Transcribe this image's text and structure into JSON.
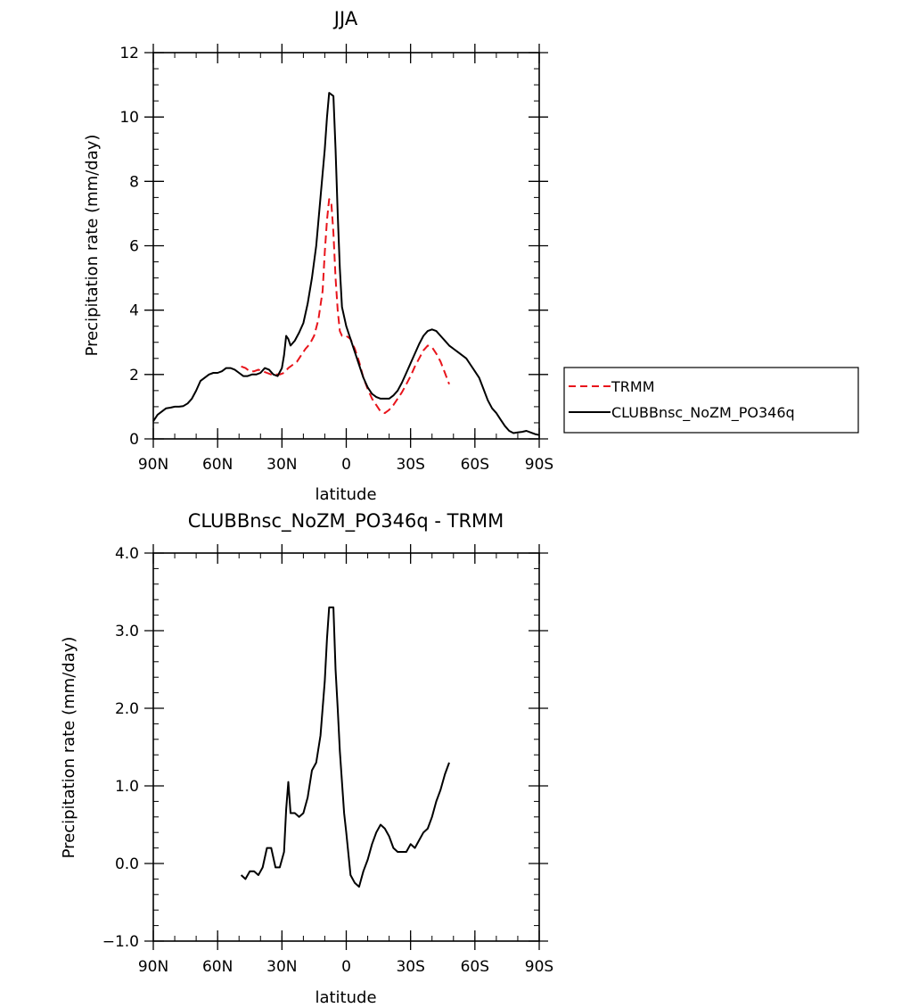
{
  "chart_data": [
    {
      "type": "line",
      "title": "JJA",
      "xlabel": "latitude",
      "ylabel": "Precipitation rate (mm/day)",
      "xlim": [
        -90,
        90
      ],
      "ylim": [
        0,
        12
      ],
      "x_ticks": [
        {
          "value": -90,
          "label": "90N"
        },
        {
          "value": -60,
          "label": "60N"
        },
        {
          "value": -30,
          "label": "30N"
        },
        {
          "value": 0,
          "label": "0"
        },
        {
          "value": 30,
          "label": "30S"
        },
        {
          "value": 60,
          "label": "60S"
        },
        {
          "value": 90,
          "label": "90S"
        }
      ],
      "y_ticks": [
        {
          "value": 0,
          "label": "0"
        },
        {
          "value": 2,
          "label": "2"
        },
        {
          "value": 4,
          "label": "4"
        },
        {
          "value": 6,
          "label": "6"
        },
        {
          "value": 8,
          "label": "8"
        },
        {
          "value": 10,
          "label": "10"
        },
        {
          "value": 12,
          "label": "12"
        }
      ],
      "legend_position": "right, outside plot",
      "series": [
        {
          "name": "TRMM",
          "color": "#e8141b",
          "dash": "dashed",
          "points": [
            [
              -49,
              2.25
            ],
            [
              -47,
              2.2
            ],
            [
              -45,
              2.1
            ],
            [
              -43,
              2.1
            ],
            [
              -41,
              2.15
            ],
            [
              -39,
              2.1
            ],
            [
              -37,
              2.05
            ],
            [
              -35,
              2.0
            ],
            [
              -33,
              2.0
            ],
            [
              -31,
              2.0
            ],
            [
              -29,
              2.05
            ],
            [
              -27,
              2.2
            ],
            [
              -25,
              2.3
            ],
            [
              -23,
              2.4
            ],
            [
              -21,
              2.6
            ],
            [
              -19,
              2.8
            ],
            [
              -17,
              2.95
            ],
            [
              -15,
              3.2
            ],
            [
              -13,
              3.7
            ],
            [
              -11,
              4.6
            ],
            [
              -10,
              5.8
            ],
            [
              -9,
              6.8
            ],
            [
              -8,
              7.45
            ],
            [
              -7,
              7.35
            ],
            [
              -6,
              6.4
            ],
            [
              -5,
              5.0
            ],
            [
              -4,
              4.0
            ],
            [
              -3,
              3.35
            ],
            [
              -2,
              3.2
            ],
            [
              0,
              3.2
            ],
            [
              2,
              3.1
            ],
            [
              4,
              2.8
            ],
            [
              6,
              2.4
            ],
            [
              8,
              1.9
            ],
            [
              10,
              1.55
            ],
            [
              12,
              1.25
            ],
            [
              14,
              1.05
            ],
            [
              16,
              0.85
            ],
            [
              18,
              0.8
            ],
            [
              20,
              0.9
            ],
            [
              22,
              1.05
            ],
            [
              24,
              1.25
            ],
            [
              26,
              1.45
            ],
            [
              28,
              1.7
            ],
            [
              30,
              1.95
            ],
            [
              32,
              2.25
            ],
            [
              34,
              2.5
            ],
            [
              36,
              2.75
            ],
            [
              38,
              2.9
            ],
            [
              40,
              2.85
            ],
            [
              42,
              2.65
            ],
            [
              44,
              2.4
            ],
            [
              46,
              2.05
            ],
            [
              48,
              1.7
            ]
          ]
        },
        {
          "name": "CLUBBnsc_NoZM_PO346q",
          "color": "#000000",
          "dash": "solid",
          "points": [
            [
              -90,
              0.55
            ],
            [
              -88,
              0.75
            ],
            [
              -86,
              0.85
            ],
            [
              -84,
              0.95
            ],
            [
              -82,
              0.97
            ],
            [
              -80,
              1.0
            ],
            [
              -78,
              1.0
            ],
            [
              -76,
              1.02
            ],
            [
              -74,
              1.1
            ],
            [
              -72,
              1.25
            ],
            [
              -70,
              1.5
            ],
            [
              -68,
              1.8
            ],
            [
              -66,
              1.9
            ],
            [
              -64,
              2.0
            ],
            [
              -62,
              2.05
            ],
            [
              -60,
              2.05
            ],
            [
              -58,
              2.1
            ],
            [
              -56,
              2.2
            ],
            [
              -54,
              2.2
            ],
            [
              -52,
              2.15
            ],
            [
              -50,
              2.05
            ],
            [
              -48,
              1.95
            ],
            [
              -46,
              1.95
            ],
            [
              -44,
              2.0
            ],
            [
              -42,
              2.0
            ],
            [
              -40,
              2.05
            ],
            [
              -38,
              2.2
            ],
            [
              -36,
              2.15
            ],
            [
              -34,
              2.0
            ],
            [
              -32,
              1.95
            ],
            [
              -30,
              2.2
            ],
            [
              -29,
              2.6
            ],
            [
              -28,
              3.2
            ],
            [
              -27,
              3.1
            ],
            [
              -26,
              2.9
            ],
            [
              -24,
              3.05
            ],
            [
              -22,
              3.3
            ],
            [
              -20,
              3.6
            ],
            [
              -18,
              4.2
            ],
            [
              -16,
              5.0
            ],
            [
              -14,
              6.0
            ],
            [
              -12,
              7.5
            ],
            [
              -10,
              9.0
            ],
            [
              -9,
              10.0
            ],
            [
              -8,
              10.75
            ],
            [
              -6,
              10.65
            ],
            [
              -5,
              9.0
            ],
            [
              -4,
              7.0
            ],
            [
              -3,
              5.3
            ],
            [
              -2,
              4.1
            ],
            [
              0,
              3.5
            ],
            [
              2,
              3.1
            ],
            [
              4,
              2.7
            ],
            [
              6,
              2.3
            ],
            [
              8,
              1.9
            ],
            [
              10,
              1.6
            ],
            [
              12,
              1.4
            ],
            [
              14,
              1.3
            ],
            [
              16,
              1.25
            ],
            [
              18,
              1.25
            ],
            [
              20,
              1.25
            ],
            [
              22,
              1.35
            ],
            [
              24,
              1.5
            ],
            [
              26,
              1.75
            ],
            [
              28,
              2.05
            ],
            [
              30,
              2.35
            ],
            [
              32,
              2.65
            ],
            [
              34,
              2.95
            ],
            [
              36,
              3.2
            ],
            [
              38,
              3.35
            ],
            [
              40,
              3.4
            ],
            [
              42,
              3.35
            ],
            [
              44,
              3.2
            ],
            [
              46,
              3.05
            ],
            [
              48,
              2.9
            ],
            [
              50,
              2.8
            ],
            [
              52,
              2.7
            ],
            [
              54,
              2.6
            ],
            [
              56,
              2.5
            ],
            [
              58,
              2.3
            ],
            [
              60,
              2.1
            ],
            [
              62,
              1.9
            ],
            [
              64,
              1.55
            ],
            [
              66,
              1.2
            ],
            [
              68,
              0.95
            ],
            [
              70,
              0.8
            ],
            [
              72,
              0.6
            ],
            [
              74,
              0.4
            ],
            [
              76,
              0.25
            ],
            [
              78,
              0.18
            ],
            [
              80,
              0.2
            ],
            [
              82,
              0.22
            ],
            [
              84,
              0.25
            ],
            [
              86,
              0.2
            ],
            [
              88,
              0.15
            ],
            [
              90,
              0.12
            ]
          ]
        }
      ]
    },
    {
      "type": "line",
      "title": "CLUBBnsc_NoZM_PO346q - TRMM",
      "xlabel": "latitude",
      "ylabel": "Precipitation rate (mm/day)",
      "xlim": [
        -90,
        90
      ],
      "ylim": [
        -1.0,
        4.0
      ],
      "x_ticks": [
        {
          "value": -90,
          "label": "90N"
        },
        {
          "value": -60,
          "label": "60N"
        },
        {
          "value": -30,
          "label": "30N"
        },
        {
          "value": 0,
          "label": "0"
        },
        {
          "value": 30,
          "label": "30S"
        },
        {
          "value": 60,
          "label": "60S"
        },
        {
          "value": 90,
          "label": "90S"
        }
      ],
      "y_ticks": [
        {
          "value": -1.0,
          "label": "−1.0"
        },
        {
          "value": 0.0,
          "label": "0.0"
        },
        {
          "value": 1.0,
          "label": "1.0"
        },
        {
          "value": 2.0,
          "label": "2.0"
        },
        {
          "value": 3.0,
          "label": "3.0"
        },
        {
          "value": 4.0,
          "label": "4.0"
        }
      ],
      "series": [
        {
          "color": "#000000",
          "dash": "solid",
          "points": [
            [
              -49,
              -0.15
            ],
            [
              -47,
              -0.2
            ],
            [
              -45,
              -0.1
            ],
            [
              -43,
              -0.1
            ],
            [
              -41,
              -0.15
            ],
            [
              -39,
              -0.05
            ],
            [
              -37,
              0.2
            ],
            [
              -35,
              0.2
            ],
            [
              -33,
              -0.05
            ],
            [
              -31,
              -0.05
            ],
            [
              -29,
              0.15
            ],
            [
              -28,
              0.7
            ],
            [
              -27,
              1.05
            ],
            [
              -26,
              0.65
            ],
            [
              -24,
              0.65
            ],
            [
              -22,
              0.6
            ],
            [
              -20,
              0.65
            ],
            [
              -18,
              0.85
            ],
            [
              -16,
              1.2
            ],
            [
              -14,
              1.3
            ],
            [
              -12,
              1.65
            ],
            [
              -10,
              2.35
            ],
            [
              -9,
              2.9
            ],
            [
              -8,
              3.3
            ],
            [
              -6,
              3.3
            ],
            [
              -5,
              2.5
            ],
            [
              -4,
              2.0
            ],
            [
              -3,
              1.45
            ],
            [
              -1,
              0.65
            ],
            [
              0,
              0.4
            ],
            [
              2,
              -0.15
            ],
            [
              4,
              -0.25
            ],
            [
              6,
              -0.3
            ],
            [
              8,
              -0.1
            ],
            [
              10,
              0.05
            ],
            [
              12,
              0.25
            ],
            [
              14,
              0.4
            ],
            [
              16,
              0.5
            ],
            [
              18,
              0.45
            ],
            [
              20,
              0.35
            ],
            [
              22,
              0.2
            ],
            [
              24,
              0.15
            ],
            [
              26,
              0.15
            ],
            [
              28,
              0.15
            ],
            [
              30,
              0.25
            ],
            [
              32,
              0.2
            ],
            [
              34,
              0.3
            ],
            [
              36,
              0.4
            ],
            [
              38,
              0.45
            ],
            [
              40,
              0.6
            ],
            [
              42,
              0.8
            ],
            [
              44,
              0.95
            ],
            [
              46,
              1.15
            ],
            [
              48,
              1.3
            ]
          ]
        }
      ]
    }
  ]
}
